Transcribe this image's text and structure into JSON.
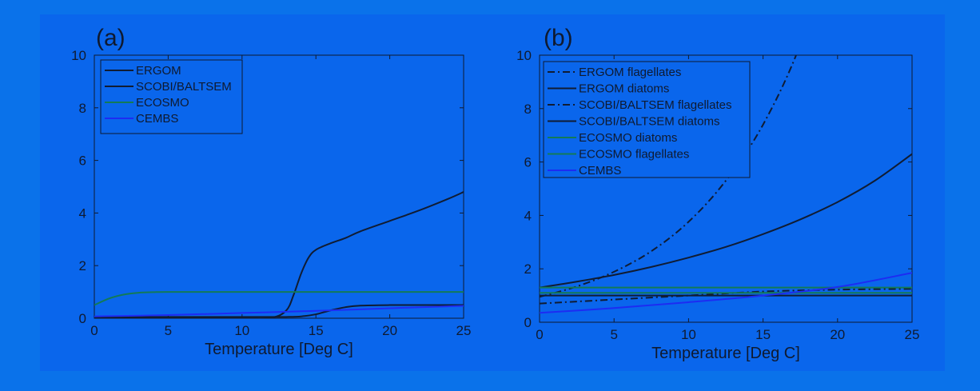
{
  "chart_data": [
    {
      "type": "line",
      "panel_label": "(a)",
      "xlabel": "Temperature [Deg C]",
      "ylabel": "",
      "xlim": [
        0,
        25
      ],
      "ylim": [
        0,
        10
      ],
      "xticks": [
        0,
        5,
        10,
        15,
        20,
        25
      ],
      "yticks": [
        0,
        2,
        4,
        6,
        8,
        10
      ],
      "legend_position": "top-left",
      "series": [
        {
          "name": "ERGOM",
          "color": "#101c33",
          "dash": "solid",
          "x": [
            0,
            5,
            10,
            12,
            13,
            14,
            15,
            16,
            17,
            18,
            20,
            22,
            24,
            25
          ],
          "y": [
            0.05,
            0.05,
            0.05,
            0.05,
            0.05,
            0.07,
            0.15,
            0.3,
            0.42,
            0.48,
            0.5,
            0.5,
            0.5,
            0.5
          ]
        },
        {
          "name": "SCOBI/BALTSEM",
          "color": "#101c33",
          "dash": "solid",
          "x": [
            0,
            5,
            10,
            12,
            13,
            13.5,
            14,
            14.5,
            15,
            16,
            17,
            18,
            20,
            22,
            24,
            25
          ],
          "y": [
            0,
            0,
            0,
            0.02,
            0.3,
            0.9,
            1.7,
            2.3,
            2.6,
            2.85,
            3.05,
            3.3,
            3.7,
            4.1,
            4.55,
            4.8
          ]
        },
        {
          "name": "ECOSMO",
          "color": "#137a57",
          "dash": "solid",
          "x": [
            0,
            1,
            2,
            3,
            4,
            5,
            10,
            15,
            20,
            25
          ],
          "y": [
            0.5,
            0.75,
            0.9,
            0.97,
            0.99,
            1.0,
            1.0,
            1.0,
            1.0,
            1.0
          ]
        },
        {
          "name": "CEMBS",
          "color": "#1d2cf2",
          "dash": "solid",
          "x": [
            0,
            5,
            10,
            15,
            20,
            25
          ],
          "y": [
            0.07,
            0.12,
            0.2,
            0.28,
            0.38,
            0.47
          ]
        }
      ]
    },
    {
      "type": "line",
      "panel_label": "(b)",
      "xlabel": "Temperature [Deg C]",
      "ylabel": "",
      "xlim": [
        0,
        25
      ],
      "ylim": [
        0,
        10
      ],
      "xticks": [
        0,
        5,
        10,
        15,
        20,
        25
      ],
      "yticks": [
        0,
        2,
        4,
        6,
        8,
        10
      ],
      "legend_position": "top-left",
      "series": [
        {
          "name": "ERGOM flagellates",
          "color": "#101c33",
          "dash": "dashdot",
          "x": [
            0,
            2.5,
            5,
            7.5,
            10,
            12.5,
            15,
            17.5,
            20
          ],
          "y": [
            0.95,
            1.34,
            1.89,
            2.66,
            3.76,
            5.3,
            7.4,
            10.4,
            14.7
          ]
        },
        {
          "name": "ERGOM diatoms",
          "color": "#101c33",
          "dash": "solid",
          "x": [
            0,
            2.5,
            5,
            7.5,
            10,
            12.5,
            15,
            17.5,
            20,
            22.5,
            25
          ],
          "y": [
            1.3,
            1.52,
            1.77,
            2.07,
            2.42,
            2.82,
            3.3,
            3.85,
            4.5,
            5.3,
            6.3
          ]
        },
        {
          "name": "SCOBI/BALTSEM flagellates",
          "color": "#101c33",
          "dash": "dashdot",
          "x": [
            0,
            5,
            10,
            15,
            20,
            25
          ],
          "y": [
            0.7,
            0.85,
            1.0,
            1.15,
            1.22,
            1.25
          ]
        },
        {
          "name": "SCOBI/BALTSEM diatoms",
          "color": "#101c33",
          "dash": "solid",
          "x": [
            0,
            25
          ],
          "y": [
            1.0,
            1.0
          ]
        },
        {
          "name": "ECOSMO diatoms",
          "color": "#137a57",
          "dash": "solid",
          "x": [
            0,
            25
          ],
          "y": [
            1.3,
            1.3
          ]
        },
        {
          "name": "ECOSMO flagellates",
          "color": "#137a57",
          "dash": "solid",
          "x": [
            0,
            25
          ],
          "y": [
            1.1,
            1.1
          ]
        },
        {
          "name": "CEMBS",
          "color": "#1d2cf2",
          "dash": "solid",
          "x": [
            0,
            5,
            10,
            15,
            20,
            25
          ],
          "y": [
            0.35,
            0.53,
            0.75,
            1.0,
            1.32,
            1.85
          ]
        }
      ]
    }
  ]
}
